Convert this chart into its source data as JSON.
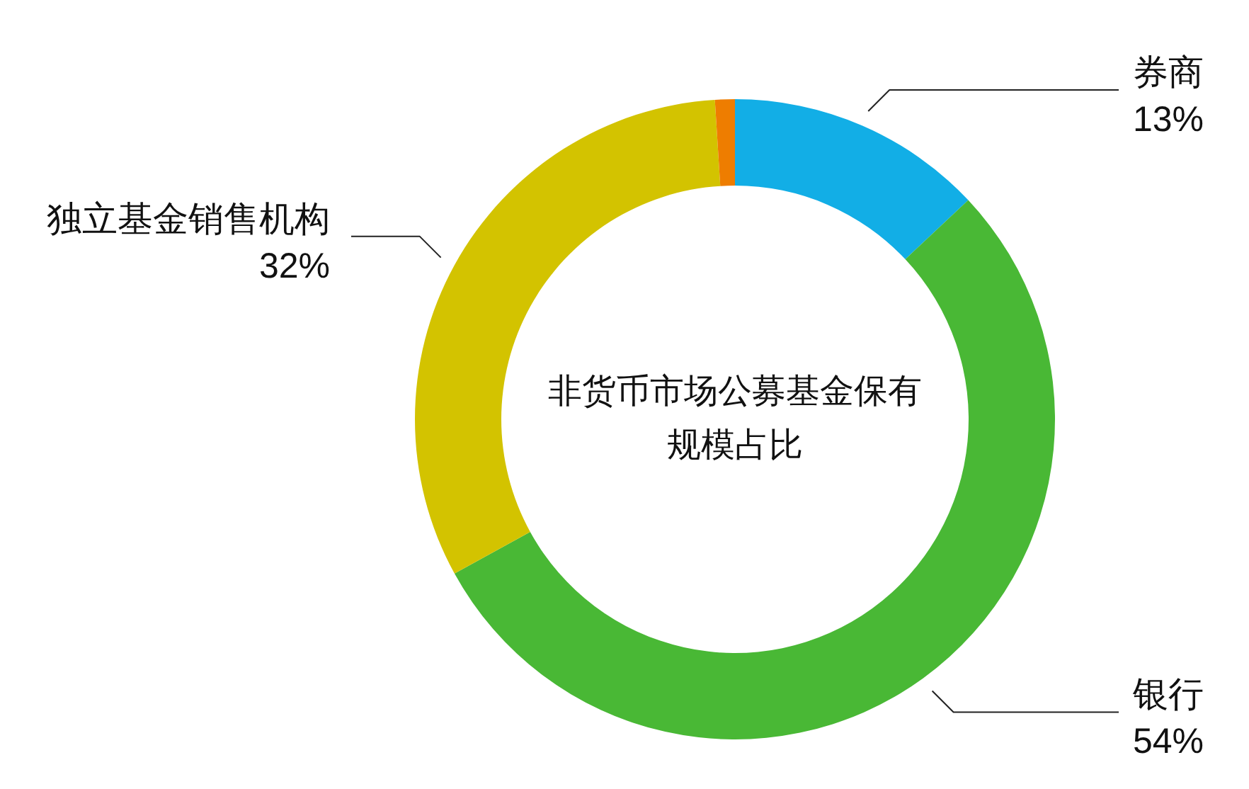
{
  "chart_data": {
    "type": "donut",
    "title": "非货币市场公募基金保有规模占比",
    "categories": [
      "券商",
      "银行",
      "独立基金销售机构",
      null
    ],
    "values": [
      13,
      54,
      32,
      1
    ],
    "value_labels": [
      "13%",
      "54%",
      "32%",
      null
    ],
    "colors": [
      "#12aee6",
      "#49b835",
      "#d3c300",
      "#ee7d00"
    ]
  }
}
